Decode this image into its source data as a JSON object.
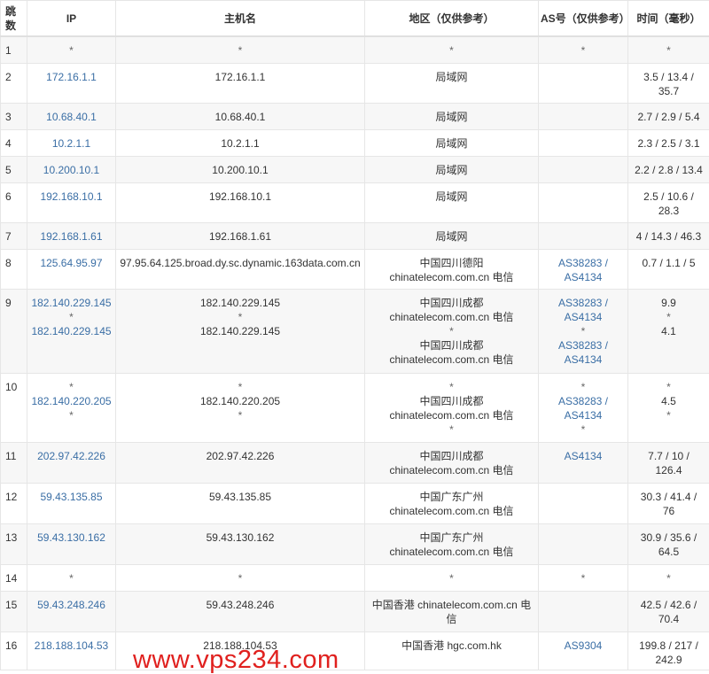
{
  "header": {
    "hop": "跳数",
    "ip": "IP",
    "host": "主机名",
    "region": "地区（仅供参考）",
    "as": "AS号（仅供参考）",
    "time": "时间（毫秒）"
  },
  "colors": {
    "link": "#3a6ea5",
    "watermark": "#e0201e",
    "stripe": "#f7f7f7"
  },
  "rows": [
    {
      "hop": "1",
      "ip": [
        "*"
      ],
      "host": [
        "*"
      ],
      "region": [
        "*"
      ],
      "as": [
        "*"
      ],
      "time": [
        "*"
      ]
    },
    {
      "hop": "2",
      "ip": [
        "172.16.1.1"
      ],
      "host": [
        "172.16.1.1"
      ],
      "region": [
        "局域网"
      ],
      "as": [],
      "time": [
        "3.5 / 13.4 /",
        "35.7"
      ]
    },
    {
      "hop": "3",
      "ip": [
        "10.68.40.1"
      ],
      "host": [
        "10.68.40.1"
      ],
      "region": [
        "局域网"
      ],
      "as": [],
      "time": [
        "2.7 / 2.9 / 5.4"
      ]
    },
    {
      "hop": "4",
      "ip": [
        "10.2.1.1"
      ],
      "host": [
        "10.2.1.1"
      ],
      "region": [
        "局域网"
      ],
      "as": [],
      "time": [
        "2.3 / 2.5 / 3.1"
      ]
    },
    {
      "hop": "5",
      "ip": [
        "10.200.10.1"
      ],
      "host": [
        "10.200.10.1"
      ],
      "region": [
        "局域网"
      ],
      "as": [],
      "time": [
        "2.2 / 2.8 / 13.4"
      ]
    },
    {
      "hop": "6",
      "ip": [
        "192.168.10.1"
      ],
      "host": [
        "192.168.10.1"
      ],
      "region": [
        "局域网"
      ],
      "as": [],
      "time": [
        "2.5 / 10.6 /",
        "28.3"
      ]
    },
    {
      "hop": "7",
      "ip": [
        "192.168.1.61"
      ],
      "host": [
        "192.168.1.61"
      ],
      "region": [
        "局域网"
      ],
      "as": [],
      "time": [
        "4 / 14.3 / 46.3"
      ]
    },
    {
      "hop": "8",
      "ip": [
        "125.64.95.97"
      ],
      "host": [
        "97.95.64.125.broad.dy.sc.dynamic.163data.com.cn"
      ],
      "region": [
        "中国四川德阳",
        "chinatelecom.com.cn 电信"
      ],
      "as": [
        "AS38283 /",
        "AS4134"
      ],
      "time": [
        "0.7 / 1.1 / 5"
      ]
    },
    {
      "hop": "9",
      "ip": [
        "182.140.229.145",
        "*",
        "182.140.229.145"
      ],
      "host": [
        "182.140.229.145",
        "*",
        "182.140.229.145"
      ],
      "region": [
        "中国四川成都",
        "chinatelecom.com.cn 电信",
        "*",
        "中国四川成都",
        "chinatelecom.com.cn 电信"
      ],
      "as": [
        "AS38283 /",
        "AS4134",
        "*",
        "AS38283 /",
        "AS4134"
      ],
      "time": [
        "9.9",
        "*",
        "4.1"
      ]
    },
    {
      "hop": "10",
      "ip": [
        "*",
        "182.140.220.205",
        "*"
      ],
      "host": [
        "*",
        "182.140.220.205",
        "*"
      ],
      "region": [
        "*",
        "中国四川成都",
        "chinatelecom.com.cn 电信",
        "*"
      ],
      "as": [
        "*",
        "AS38283 /",
        "AS4134",
        "*"
      ],
      "time": [
        "*",
        "4.5",
        "*"
      ]
    },
    {
      "hop": "11",
      "ip": [
        "202.97.42.226"
      ],
      "host": [
        "202.97.42.226"
      ],
      "region": [
        "中国四川成都",
        "chinatelecom.com.cn 电信"
      ],
      "as": [
        "AS4134"
      ],
      "time": [
        "7.7 / 10 /",
        "126.4"
      ]
    },
    {
      "hop": "12",
      "ip": [
        "59.43.135.85"
      ],
      "host": [
        "59.43.135.85"
      ],
      "region": [
        "中国广东广州",
        "chinatelecom.com.cn 电信"
      ],
      "as": [],
      "time": [
        "30.3 / 41.4 /",
        "76"
      ]
    },
    {
      "hop": "13",
      "ip": [
        "59.43.130.162"
      ],
      "host": [
        "59.43.130.162"
      ],
      "region": [
        "中国广东广州",
        "chinatelecom.com.cn 电信"
      ],
      "as": [],
      "time": [
        "30.9 / 35.6 /",
        "64.5"
      ]
    },
    {
      "hop": "14",
      "ip": [
        "*"
      ],
      "host": [
        "*"
      ],
      "region": [
        "*"
      ],
      "as": [
        "*"
      ],
      "time": [
        "*"
      ]
    },
    {
      "hop": "15",
      "ip": [
        "59.43.248.246"
      ],
      "host": [
        "59.43.248.246"
      ],
      "region": [
        "中国香港 chinatelecom.com.cn 电",
        "信"
      ],
      "as": [],
      "time": [
        "42.5 / 42.6 /",
        "70.4"
      ]
    },
    {
      "hop": "16",
      "ip": [
        "218.188.104.53"
      ],
      "host": [
        "218.188.104.53"
      ],
      "region": [
        "中国香港 hgc.com.hk"
      ],
      "as": [
        "AS9304"
      ],
      "time": [
        "199.8 / 217 /",
        "242.9"
      ]
    }
  ],
  "watermark": "www.vps234.com"
}
